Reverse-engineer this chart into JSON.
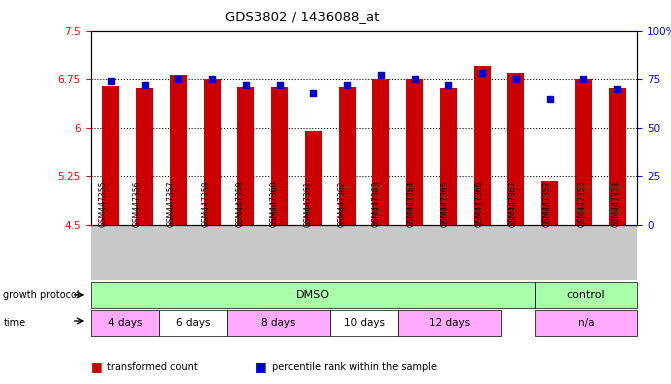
{
  "title": "GDS3802 / 1436088_at",
  "samples": [
    "GSM447355",
    "GSM447356",
    "GSM447357",
    "GSM447358",
    "GSM447359",
    "GSM447360",
    "GSM447361",
    "GSM447362",
    "GSM447363",
    "GSM447364",
    "GSM447365",
    "GSM447366",
    "GSM447367",
    "GSM447352",
    "GSM447353",
    "GSM447354"
  ],
  "bar_values": [
    6.65,
    6.62,
    6.82,
    6.75,
    6.63,
    6.63,
    5.95,
    6.63,
    6.75,
    6.75,
    6.62,
    6.95,
    6.85,
    5.18,
    6.75,
    6.62
  ],
  "dot_values_pct": [
    74,
    72,
    75,
    75,
    72,
    72,
    68,
    72,
    77,
    75,
    72,
    78,
    75,
    65,
    75,
    70
  ],
  "bar_color": "#cc0000",
  "dot_color": "#0000cc",
  "ylim_left": [
    4.5,
    7.5
  ],
  "ylim_right": [
    0,
    100
  ],
  "yticks_left": [
    4.5,
    5.25,
    6.0,
    6.75,
    7.5
  ],
  "yticks_left_labels": [
    "4.5",
    "5.25",
    "6",
    "6.75",
    "7.5"
  ],
  "yticks_right": [
    0,
    25,
    50,
    75,
    100
  ],
  "yticks_right_labels": [
    "0",
    "25",
    "50",
    "75",
    "100%"
  ],
  "hlines": [
    5.25,
    6.0,
    6.75
  ],
  "bar_bottom": 4.5,
  "legend_red": "transformed count",
  "legend_blue": "percentile rank within the sample",
  "dmso_color": "#aaffaa",
  "control_color": "#88ee88",
  "tick_bg_color": "#c8c8c8",
  "time_colors": [
    "#ffaaff",
    "#ffffff",
    "#ffaaff",
    "#ffffff",
    "#ffaaff",
    "#ffaaff"
  ],
  "time_groups": [
    {
      "label": "4 days",
      "start": 0,
      "end": 2
    },
    {
      "label": "6 days",
      "start": 2,
      "end": 4
    },
    {
      "label": "8 days",
      "start": 4,
      "end": 7
    },
    {
      "label": "10 days",
      "start": 7,
      "end": 9
    },
    {
      "label": "12 days",
      "start": 9,
      "end": 12
    },
    {
      "label": "n/a",
      "start": 13,
      "end": 16
    }
  ]
}
